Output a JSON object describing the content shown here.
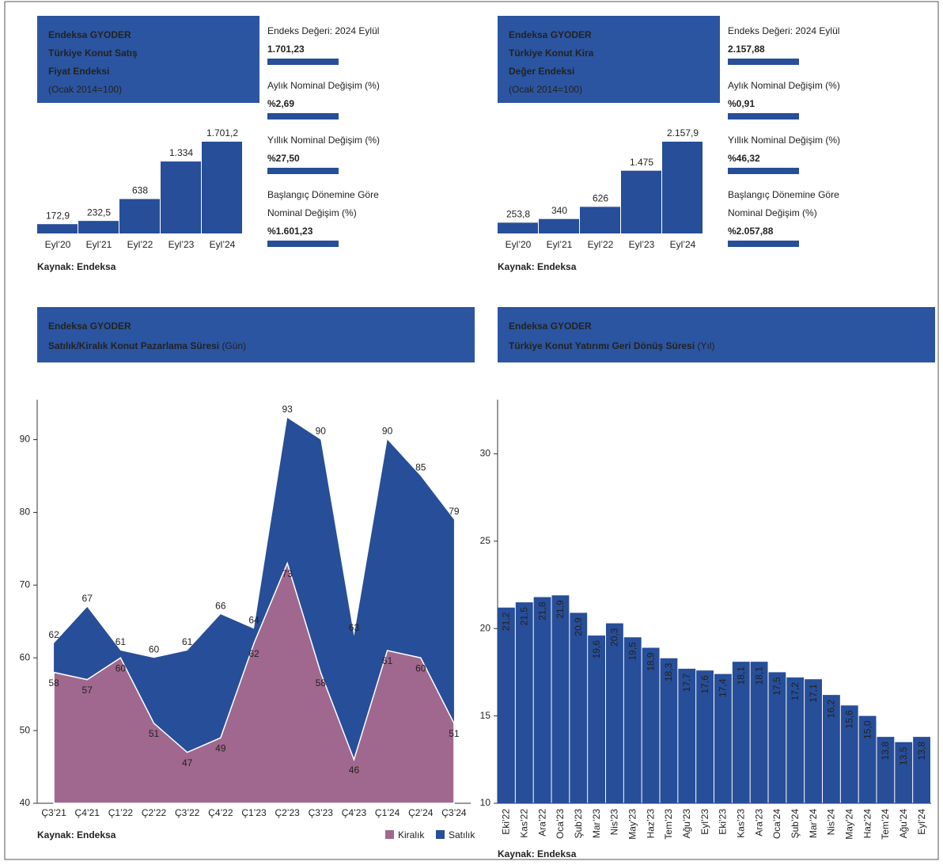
{
  "chart_data": [
    {
      "type": "bar",
      "title": [
        "Endeksa GYODER",
        "Türkiye Konut Satış",
        "Fiyat Endeksi"
      ],
      "subtitle": "(Ocak 2014=100)",
      "categories": [
        "Eyl’20",
        "Eyl’21",
        "Eyl’22",
        "Eyl’23",
        "Eyl’24"
      ],
      "values": [
        172.9,
        232.5,
        638,
        1334,
        1701.2
      ],
      "value_labels": [
        "172,9",
        "232,5",
        "638",
        "1.334",
        "1.701,2"
      ],
      "color": "#274e98",
      "stats": [
        {
          "label": [
            "Endeks Değeri: 2024 Eylül"
          ],
          "value": "1.701,23"
        },
        {
          "label": [
            "Aylık Nominal Değişim (%)"
          ],
          "value": "%2,69"
        },
        {
          "label": [
            "Yıllık Nominal Değişim (%)"
          ],
          "value": "%27,50"
        },
        {
          "label": [
            "Başlangıç Dönemine Göre",
            "Nominal Değişim (%)"
          ],
          "value": "%1.601,23"
        }
      ],
      "source": "Kaynak: Endeksa"
    },
    {
      "type": "bar",
      "title": [
        "Endeksa GYODER",
        "Türkiye Konut Kira",
        "Değer Endeksi"
      ],
      "subtitle": "(Ocak 2014=100)",
      "categories": [
        "Eyl’20",
        "Eyl’21",
        "Eyl’22",
        "Eyl’23",
        "Eyl’24"
      ],
      "values": [
        253.8,
        340,
        626,
        1475,
        2157.9
      ],
      "value_labels": [
        "253,8",
        "340",
        "626",
        "1.475",
        "2.157,9"
      ],
      "color": "#274e98",
      "stats": [
        {
          "label": [
            "Endeks Değeri: 2024 Eylül"
          ],
          "value": "2.157,88"
        },
        {
          "label": [
            "Aylık Nominal Değişim (%)"
          ],
          "value": "%0,91"
        },
        {
          "label": [
            "Yıllık Nominal Değişim (%)"
          ],
          "value": "%46,32"
        },
        {
          "label": [
            "Başlangıç Dönemine Göre",
            "Nominal Değişim (%)"
          ],
          "value": "%2.057,88"
        }
      ],
      "source": "Kaynak: Endeksa"
    },
    {
      "type": "area",
      "title": [
        "Endeksa GYODER",
        "Satılık/Kiralık Konut Pazarlama Süresi"
      ],
      "subtitle": "(Gün)",
      "categories": [
        "Ç3’21",
        "Ç4’21",
        "Ç1’22",
        "Ç2’22",
        "Ç3’22",
        "Ç4’22",
        "Ç1’23",
        "Ç2’23",
        "Ç3’23",
        "Ç4’23",
        "Ç1’24",
        "Ç2’24",
        "Ç3’24"
      ],
      "series": [
        {
          "name": "Kiralık",
          "color": "#a0688e",
          "values": [
            58,
            57,
            60,
            51,
            47,
            49,
            62,
            73,
            58,
            46,
            61,
            60,
            51
          ]
        },
        {
          "name": "Satılık",
          "color": "#274e98",
          "values": [
            62,
            67,
            61,
            60,
            61,
            66,
            64,
            93,
            90,
            63,
            90,
            85,
            79
          ]
        }
      ],
      "ylim": [
        40,
        95.5
      ],
      "yticks": [
        40,
        50,
        60,
        70,
        80,
        90
      ],
      "legend": "lower right",
      "source": "Kaynak: Endeksa"
    },
    {
      "type": "bar",
      "title": [
        "Endeksa GYODER",
        "Türkiye Konut Yatırımı Geri Dönüş Süresi"
      ],
      "subtitle": "(Yıl)",
      "categories": [
        "Eki’22",
        "Kas’22",
        "Ara’22",
        "Oca’23",
        "Şub’23",
        "Mar’23",
        "Nis’23",
        "May’23",
        "Haz’23",
        "Tem’23",
        "Ağu’23",
        "Eyl’23",
        "Eki’23",
        "Kas’23",
        "Ara’23",
        "Oca’24",
        "Şub’24",
        "Mar’24",
        "Nis’24",
        "May’24",
        "Haz’24",
        "Tem’24",
        "Ağu’24",
        "Eyl’24"
      ],
      "values": [
        21.2,
        21.5,
        21.8,
        21.9,
        20.9,
        19.6,
        20.3,
        19.5,
        18.9,
        18.3,
        17.7,
        17.6,
        17.4,
        18.1,
        18.1,
        17.5,
        17.2,
        17.1,
        16.2,
        15.6,
        15.0,
        13.8,
        13.5,
        13.8
      ],
      "value_labels": [
        "21,2",
        "21,5",
        "21,8",
        "21,9",
        "20,9",
        "19,6",
        "20,3",
        "19,5",
        "18,9",
        "18,3",
        "17,7",
        "17,6",
        "17,4",
        "18,1",
        "18,1",
        "17,5",
        "17,2",
        "17,1",
        "16,2",
        "15,6",
        "15,0",
        "13,8",
        "13,5",
        "13,8"
      ],
      "color": "#274e98",
      "ylim": [
        10,
        33.1
      ],
      "yticks": [
        10,
        15,
        20,
        25,
        30
      ],
      "source": "Kaynak: Endeksa"
    }
  ]
}
